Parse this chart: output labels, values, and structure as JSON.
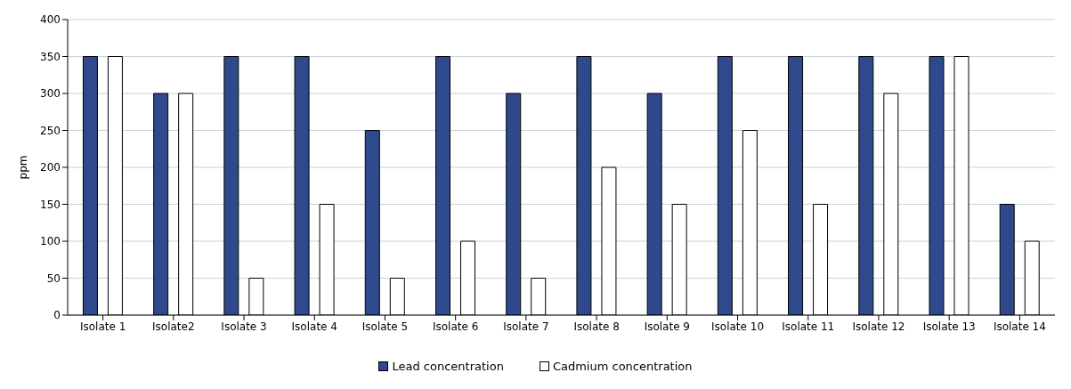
{
  "chart_data": {
    "type": "bar",
    "ylabel": "ppm",
    "categories": [
      "Isolate 1",
      "Isolate2",
      "Isolate 3",
      "Isolate 4",
      "Isolate 5",
      "Isolate 6",
      "Isolate 7",
      "Isolate 8",
      "Isolate 9",
      "Isolate 10",
      "Isolate 11",
      "Isolate 12",
      "Isolate 13",
      "Isolate 14"
    ],
    "series": [
      {
        "name": "Lead concentration",
        "color": "#2e4a8c",
        "values": [
          350,
          300,
          350,
          350,
          250,
          350,
          300,
          350,
          300,
          350,
          350,
          350,
          350,
          150
        ]
      },
      {
        "name": "Cadmium concentration",
        "color": "#ffffff",
        "values": [
          350,
          300,
          50,
          150,
          50,
          100,
          50,
          200,
          150,
          250,
          150,
          300,
          350,
          100
        ]
      }
    ],
    "ylim": [
      0,
      400
    ],
    "yticks": [
      0,
      50,
      100,
      150,
      200,
      250,
      300,
      350,
      400
    ],
    "grid": "y",
    "legend": "bottom"
  }
}
